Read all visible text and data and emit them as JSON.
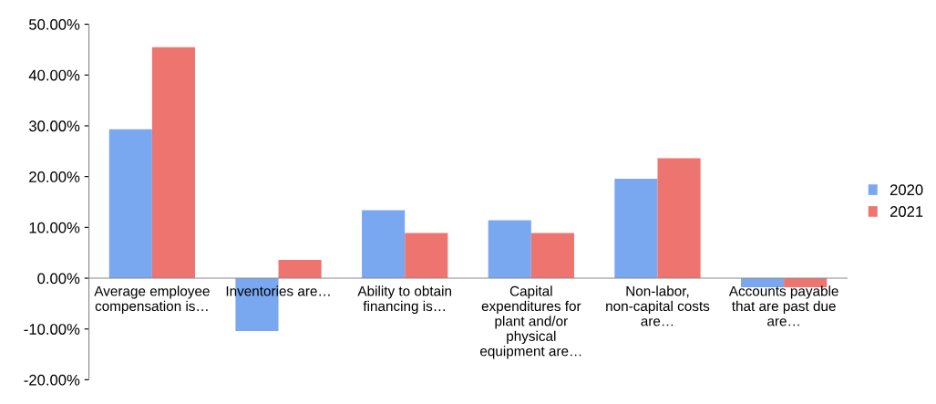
{
  "chart_data": {
    "type": "bar",
    "categories": [
      "Average employee compensation is…",
      "Inventories are…",
      "Ability to obtain financing is…",
      "Capital expenditures for plant and/or physical equipment are…",
      "Non-labor, non-capital costs are…",
      "Accounts payable that are past due are…"
    ],
    "series": [
      {
        "name": "2020",
        "color": "#7aa8f0",
        "values": [
          29.3,
          -10.4,
          13.4,
          11.4,
          19.6,
          -1.8
        ]
      },
      {
        "name": "2021",
        "color": "#ee7470",
        "values": [
          45.5,
          3.6,
          8.9,
          8.9,
          23.6,
          -1.8
        ]
      }
    ],
    "ylim": [
      -20,
      50
    ],
    "yticks": [
      {
        "value": -20,
        "label": "-20.00%"
      },
      {
        "value": -10,
        "label": "-10.00%"
      },
      {
        "value": 0,
        "label": "0.00%"
      },
      {
        "value": 10,
        "label": "10.00%"
      },
      {
        "value": 20,
        "label": "20.00%"
      },
      {
        "value": 30,
        "label": "30.00%"
      },
      {
        "value": 40,
        "label": "40.00%"
      },
      {
        "value": 50,
        "label": "50.00%"
      }
    ],
    "grid": false,
    "legend": "right"
  }
}
